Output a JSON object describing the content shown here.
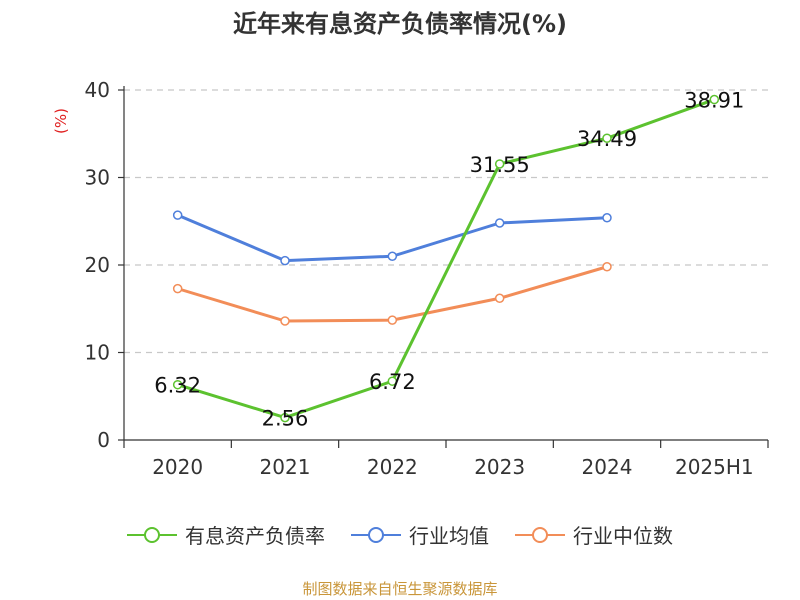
{
  "colors": {
    "series_green": "#5cc22f",
    "series_blue": "#4f7fdb",
    "series_orange": "#f28d58",
    "axis": "#333333",
    "grid": "#c8c8c8",
    "ylabel": "#e02020",
    "source": "#c9963a"
  },
  "source": "制图数据来自恒生聚源数据库",
  "chart_data": {
    "type": "line",
    "title": "近年来有息资产负债率情况(%)",
    "xlabel": "",
    "ylabel": "(%)",
    "categories": [
      "2020",
      "2021",
      "2022",
      "2023",
      "2024",
      "2025H1"
    ],
    "ylim": [
      0,
      40
    ],
    "yticks": [
      0,
      10,
      20,
      30,
      40
    ],
    "grid": true,
    "legend_position": "bottom",
    "series": [
      {
        "name": "有息资产负债率",
        "color": "#5cc22f",
        "values": [
          6.32,
          2.56,
          6.72,
          31.55,
          34.49,
          38.91
        ],
        "labels": [
          "6.32",
          "2.56",
          "6.72",
          "31.55",
          "34.49",
          "38.91"
        ]
      },
      {
        "name": "行业均值",
        "color": "#4f7fdb",
        "values": [
          25.7,
          20.5,
          21.0,
          24.8,
          25.4,
          null
        ]
      },
      {
        "name": "行业中位数",
        "color": "#f28d58",
        "values": [
          17.3,
          13.6,
          13.7,
          16.2,
          19.8,
          null
        ]
      }
    ]
  }
}
